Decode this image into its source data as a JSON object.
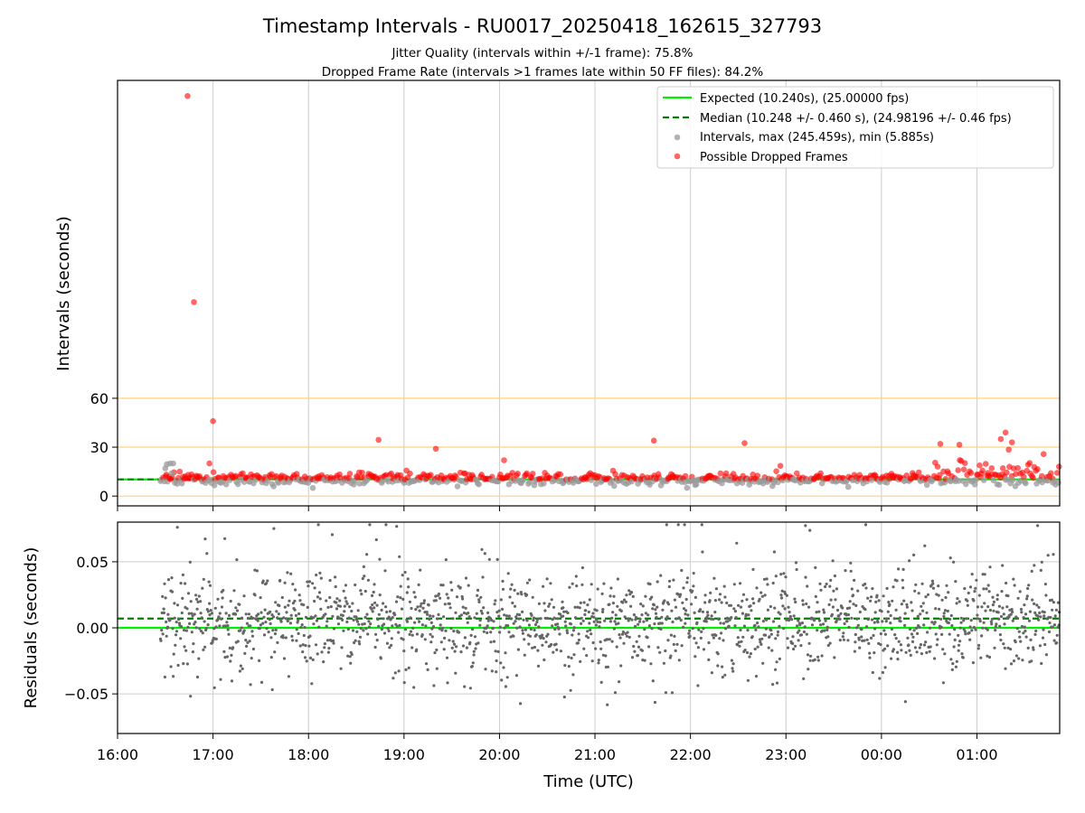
{
  "title": "Timestamp Intervals - RU0017_20250418_162615_327793",
  "subtitle1": "Jitter Quality (intervals within +/-1 frame): 75.8%",
  "subtitle2": "Dropped Frame Rate (intervals >1 frames late within 50 FF files): 84.2%",
  "colors": {
    "expected": "#00ee00",
    "median": "#008000",
    "intervals": "#999999",
    "dropped": "#ff0000",
    "threshold": "#ffd27a",
    "residual": "#666666",
    "grid": "#cccccc"
  },
  "legend": {
    "expected": "Expected (10.240s), (25.00000 fps)",
    "median": "Median (10.248 +/- 0.460 s), (24.98196 +/- 0.46 fps)",
    "intervals": "Intervals, max (245.459s), min (5.885s)",
    "dropped": "Possible Dropped Frames"
  },
  "chart_data": [
    {
      "type": "scatter",
      "ylabel": "Intervals (seconds)",
      "xlabel": "",
      "yticks": [
        0,
        30,
        60
      ],
      "ylim": [
        -6,
        255
      ],
      "xlim": [
        "16:00",
        "01:52"
      ],
      "threshold_lines": [
        0,
        30,
        60
      ],
      "expected": 10.24,
      "median": 10.248,
      "legend_position": "top-right",
      "grid": "vertical",
      "dropped_outliers": [
        {
          "x": "16:44",
          "y": 245.4
        },
        {
          "x": "16:48",
          "y": 119.0
        },
        {
          "x": "17:00",
          "y": 46.0
        },
        {
          "x": "18:44",
          "y": 34.5
        },
        {
          "x": "19:20",
          "y": 29.0
        },
        {
          "x": "21:37",
          "y": 34.0
        },
        {
          "x": "22:34",
          "y": 32.5
        },
        {
          "x": "00:37",
          "y": 32.0
        },
        {
          "x": "00:49",
          "y": 31.5
        },
        {
          "x": "01:15",
          "y": 35.0
        },
        {
          "x": "01:18",
          "y": 39.0
        },
        {
          "x": "01:20",
          "y": 28.5
        },
        {
          "x": "01:22",
          "y": 33.0
        }
      ],
      "gray_outliers": [
        {
          "x": "16:30",
          "y": 17.0
        },
        {
          "x": "16:31",
          "y": 19.5
        },
        {
          "x": "16:33",
          "y": 20.0
        },
        {
          "x": "16:35",
          "y": 20.0
        },
        {
          "x": "16:34",
          "y": 14.0
        }
      ]
    },
    {
      "type": "scatter",
      "ylabel": "Residuals (seconds)",
      "xlabel": "Time (UTC)",
      "yticks": [
        -0.05,
        0.0,
        0.05
      ],
      "ytick_labels": [
        "−0.05",
        "0.00",
        "0.05"
      ],
      "ylim": [
        -0.08,
        0.08
      ],
      "xlim": [
        "16:00",
        "01:52"
      ],
      "expected_residual": 0.0,
      "median_residual": 0.007,
      "grid": "both",
      "xticks": [
        "16:00",
        "17:00",
        "18:00",
        "19:00",
        "20:00",
        "21:00",
        "22:00",
        "23:00",
        "00:00",
        "01:00"
      ]
    }
  ]
}
